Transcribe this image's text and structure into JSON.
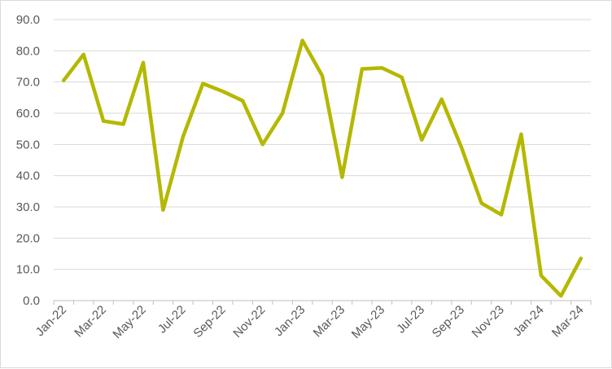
{
  "chart_data": {
    "type": "line",
    "title": "",
    "xlabel": "",
    "ylabel": "",
    "ylim": [
      0,
      90
    ],
    "y_ticks": [
      "0.0",
      "10.0",
      "20.0",
      "30.0",
      "40.0",
      "50.0",
      "60.0",
      "70.0",
      "80.0",
      "90.0"
    ],
    "grid": "horizontal",
    "legend": "none",
    "line_color": "#b5b800",
    "x": [
      "Jan-22",
      "Feb-22",
      "Mar-22",
      "Apr-22",
      "May-22",
      "Jun-22",
      "Jul-22",
      "Aug-22",
      "Sep-22",
      "Oct-22",
      "Nov-22",
      "Dec-22",
      "Jan-23",
      "Feb-23",
      "Mar-23",
      "Apr-23",
      "May-23",
      "Jun-23",
      "Jul-23",
      "Aug-23",
      "Sep-23",
      "Oct-23",
      "Nov-23",
      "Dec-23",
      "Jan-24",
      "Feb-24",
      "Mar-24"
    ],
    "x_tick_labels": [
      "Jan-22",
      "",
      "Mar-22",
      "",
      "May-22",
      "",
      "Jul-22",
      "",
      "Sep-22",
      "",
      "Nov-22",
      "",
      "Jan-23",
      "",
      "Mar-23",
      "",
      "May-23",
      "",
      "Jul-23",
      "",
      "Sep-23",
      "",
      "Nov-23",
      "",
      "Jan-24",
      "",
      "Mar-24"
    ],
    "series": [
      {
        "values": [
          70.5,
          78.8,
          57.5,
          56.5,
          76.2,
          29.0,
          52.5,
          69.5,
          67.0,
          64.0,
          50.0,
          60.0,
          83.3,
          72.0,
          39.5,
          74.2,
          74.5,
          71.5,
          51.5,
          64.5,
          49.0,
          31.2,
          27.5,
          53.3,
          8.0,
          1.5,
          13.5
        ]
      }
    ]
  }
}
